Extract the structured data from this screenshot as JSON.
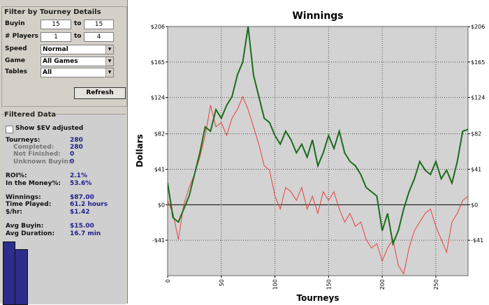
{
  "filter": {
    "title": "Filter by Tourney Details",
    "ranges": [
      {
        "label": "Buyin",
        "from": "15",
        "to_label": "to",
        "to": "15"
      },
      {
        "label": "# Players",
        "from": "1",
        "to_label": "to",
        "to": "4"
      }
    ],
    "selects": [
      {
        "label": "Speed",
        "value": "Normal"
      },
      {
        "label": "Game",
        "value": "All Games"
      },
      {
        "label": "Tables",
        "value": "All"
      }
    ],
    "button": "Refresh"
  },
  "filtered": {
    "title": "Filtered Data",
    "checkbox": "Show $EV adjusted",
    "groups": [
      [
        {
          "label": "Tourneys:",
          "value": "280"
        },
        {
          "label": "Completed:",
          "value": "280",
          "sub": true
        },
        {
          "label": "Not Finished:",
          "value": "0",
          "sub": true
        },
        {
          "label": "Unknown Buyin:",
          "value": "0",
          "sub": true
        }
      ],
      [
        {
          "label": "ROI%:",
          "value": "2.1%"
        },
        {
          "label": "In the Money%:",
          "value": "53.6%"
        }
      ],
      [
        {
          "label": "Winnings:",
          "value": "$87.00"
        },
        {
          "label": "Time Played:",
          "value": "61.2 hours"
        },
        {
          "label": "$/hr:",
          "value": "$1.42"
        }
      ],
      [
        {
          "label": "Avg Buyin:",
          "value": "$15.00"
        },
        {
          "label": "Avg Duration:",
          "value": "16.7 min"
        }
      ]
    ]
  },
  "chart_data": {
    "type": "line",
    "title": "Winnings",
    "x_label": "Tourneys",
    "y_label": "Dollars",
    "x": [
      0,
      5,
      10,
      15,
      20,
      25,
      30,
      35,
      40,
      45,
      50,
      55,
      60,
      65,
      70,
      75,
      80,
      85,
      90,
      95,
      100,
      105,
      110,
      115,
      120,
      125,
      130,
      135,
      140,
      145,
      150,
      155,
      160,
      165,
      170,
      175,
      180,
      185,
      190,
      195,
      200,
      205,
      210,
      215,
      220,
      225,
      230,
      235,
      240,
      245,
      250,
      255,
      260,
      265,
      270,
      275,
      280
    ],
    "series": [
      {
        "color": "#1b6b1b",
        "values": [
          25,
          -15,
          -20,
          -5,
          10,
          35,
          60,
          90,
          85,
          110,
          100,
          115,
          125,
          150,
          165,
          206,
          150,
          125,
          100,
          95,
          80,
          70,
          85,
          75,
          60,
          70,
          55,
          75,
          45,
          60,
          80,
          65,
          85,
          60,
          50,
          45,
          35,
          20,
          15,
          10,
          -30,
          -10,
          -45,
          -30,
          -5,
          15,
          30,
          50,
          40,
          35,
          50,
          30,
          40,
          25,
          50,
          85,
          87
        ]
      },
      {
        "color": "#e8403c",
        "values": [
          5,
          -10,
          -40,
          0,
          20,
          35,
          55,
          80,
          115,
          90,
          95,
          80,
          100,
          110,
          125,
          110,
          90,
          70,
          45,
          40,
          10,
          -5,
          20,
          15,
          5,
          20,
          -5,
          10,
          -10,
          15,
          5,
          15,
          -5,
          -20,
          -10,
          -25,
          -20,
          -40,
          -50,
          -45,
          -65,
          -50,
          -40,
          -70,
          -80,
          -50,
          -30,
          -20,
          -10,
          -5,
          -25,
          -40,
          -55,
          -20,
          -10,
          5,
          10
        ]
      }
    ],
    "xlim": [
      0,
      280
    ],
    "xticks": [
      0,
      50,
      100,
      150,
      200,
      250
    ],
    "ylim": [
      -82,
      206
    ],
    "yticks": [
      {
        "value": 206,
        "label": "$206"
      },
      {
        "value": 165,
        "label": "$165"
      },
      {
        "value": 124,
        "label": "$124"
      },
      {
        "value": 82,
        "label": "$82"
      },
      {
        "value": 41,
        "label": "$41"
      },
      {
        "value": 0,
        "label": "$0"
      },
      {
        "value": -41,
        "label": "-$41"
      }
    ],
    "grid": true
  }
}
